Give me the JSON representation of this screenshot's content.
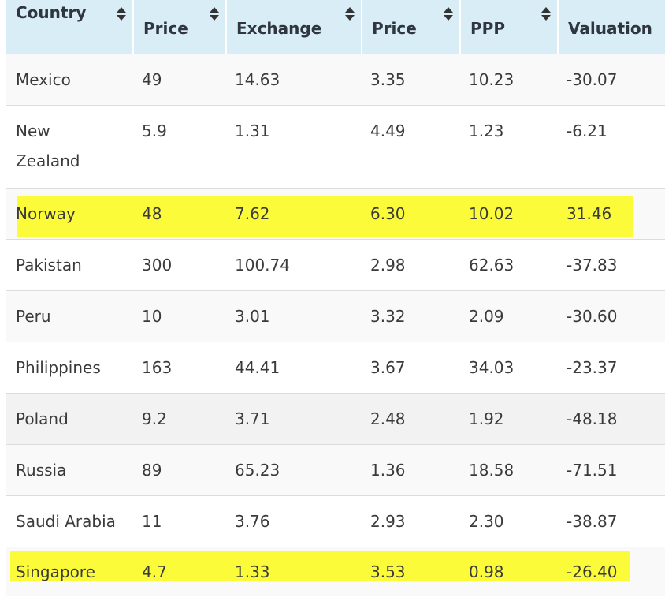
{
  "table": {
    "headers": [
      {
        "label": "Country",
        "sortable": true
      },
      {
        "label": "Price",
        "sortable": true
      },
      {
        "label": "Exchange",
        "sortable": true
      },
      {
        "label": "Price",
        "sortable": true
      },
      {
        "label": "PPP",
        "sortable": true
      },
      {
        "label": "Valuation",
        "sortable": false
      }
    ],
    "rows": [
      {
        "country": "Mexico",
        "price": "49",
        "exchange": "14.63",
        "usd_price": "3.35",
        "ppp": "10.23",
        "valuation": "-30.07",
        "highlighted": false
      },
      {
        "country": "New Zealand",
        "price": "5.9",
        "exchange": "1.31",
        "usd_price": "4.49",
        "ppp": "1.23",
        "valuation": "-6.21",
        "highlighted": false
      },
      {
        "country": "Norway",
        "price": "48",
        "exchange": "7.62",
        "usd_price": "6.30",
        "ppp": "10.02",
        "valuation": "31.46",
        "highlighted": true
      },
      {
        "country": "Pakistan",
        "price": "300",
        "exchange": "100.74",
        "usd_price": "2.98",
        "ppp": "62.63",
        "valuation": "-37.83",
        "highlighted": false
      },
      {
        "country": "Peru",
        "price": "10",
        "exchange": "3.01",
        "usd_price": "3.32",
        "ppp": "2.09",
        "valuation": "-30.60",
        "highlighted": false
      },
      {
        "country": "Philippines",
        "price": "163",
        "exchange": "44.41",
        "usd_price": "3.67",
        "ppp": "34.03",
        "valuation": "-23.37",
        "highlighted": false
      },
      {
        "country": "Poland",
        "price": "9.2",
        "exchange": "3.71",
        "usd_price": "2.48",
        "ppp": "1.92",
        "valuation": "-48.18",
        "highlighted": false
      },
      {
        "country": "Russia",
        "price": "89",
        "exchange": "65.23",
        "usd_price": "1.36",
        "ppp": "18.58",
        "valuation": "-71.51",
        "highlighted": false
      },
      {
        "country": "Saudi Arabia",
        "price": "11",
        "exchange": "3.76",
        "usd_price": "2.93",
        "ppp": "2.30",
        "valuation": "-38.87",
        "highlighted": false
      },
      {
        "country": "Singapore",
        "price": "4.7",
        "exchange": "1.33",
        "usd_price": "3.53",
        "ppp": "0.98",
        "valuation": "-26.40",
        "highlighted": true
      }
    ]
  },
  "colors": {
    "header_bg": "#d9edf7",
    "highlight": "#fbfb3a",
    "row_alt": "#f9f9f9"
  }
}
